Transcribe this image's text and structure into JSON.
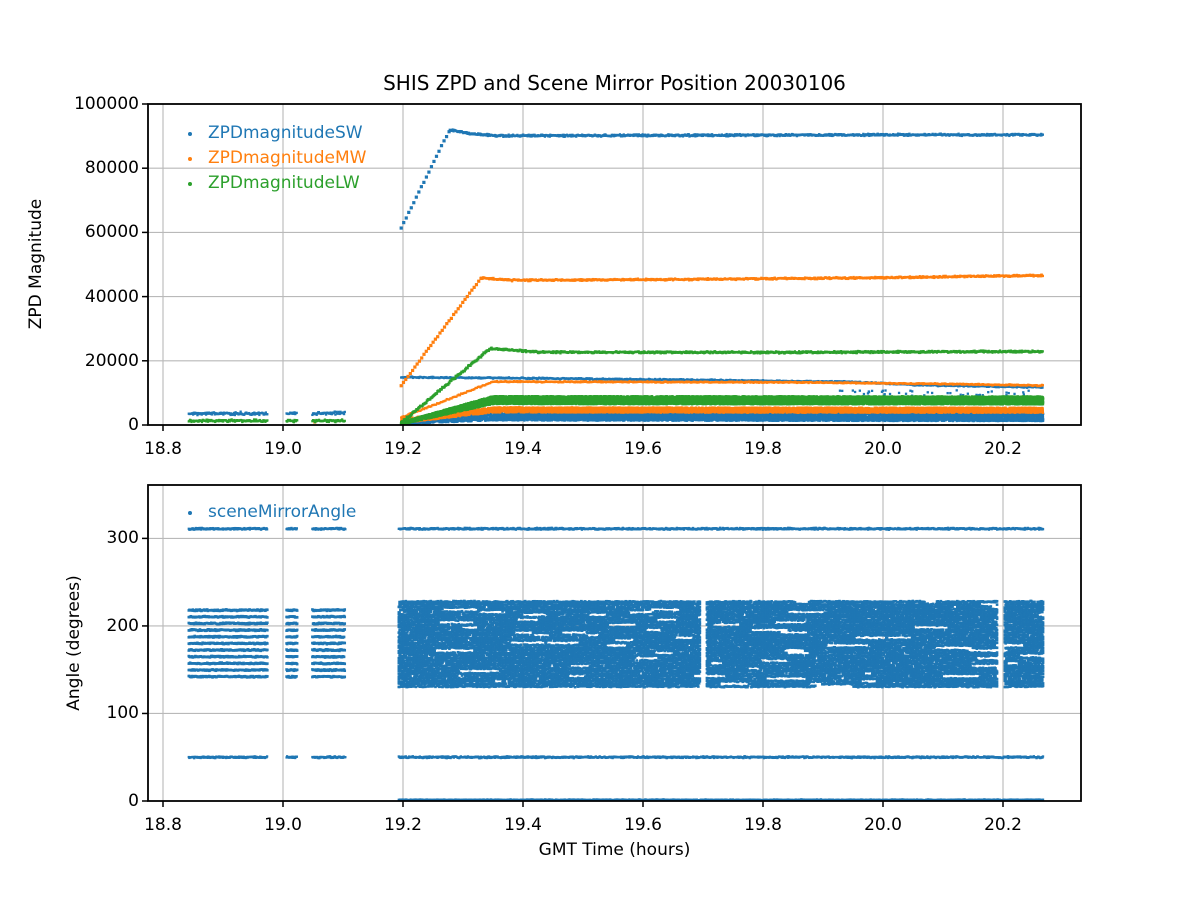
{
  "figure": {
    "background": "#ffffff",
    "grid_color": "#b9b9b9",
    "spine_color": "#000000"
  },
  "chart_data": [
    {
      "id": "zpd",
      "type": "scatter",
      "title": "SHIS ZPD and Scene Mirror Position 20030106",
      "xlabel": "",
      "ylabel": "ZPD Magnitude",
      "xlim": [
        18.775,
        20.33
      ],
      "ylim": [
        0,
        100000
      ],
      "xticks": [
        18.8,
        19.0,
        19.2,
        19.4,
        19.6,
        19.8,
        20.0,
        20.2
      ],
      "xtick_labels": [
        "18.8",
        "19.0",
        "19.2",
        "19.4",
        "19.6",
        "19.8",
        "20.0",
        "20.2"
      ],
      "yticks": [
        0,
        20000,
        40000,
        60000,
        80000,
        100000
      ],
      "ytick_labels": [
        "0",
        "20000",
        "40000",
        "60000",
        "80000",
        "100000"
      ],
      "grid": true,
      "legend_position": "upper left",
      "series": [
        {
          "name": "ZPDmagnitudeSW",
          "color": "#1f77b4",
          "segments": [
            {
              "kind": "hline",
              "windows": [
                [
                  18.843,
                  18.974
                ],
                [
                  19.006,
                  19.024
                ],
                [
                  19.049,
                  19.104
                ]
              ],
              "y": 3600,
              "jitter": 600,
              "dx": 0.0012
            },
            {
              "kind": "trend",
              "pts": [
                [
                  19.197,
                  61500
                ],
                [
                  19.278,
                  92000
                ]
              ],
              "dx": 0.0042,
              "jitter": 250,
              "size": 3.2
            },
            {
              "kind": "trend",
              "pts": [
                [
                  19.278,
                  92000
                ],
                [
                  19.31,
                  90800
                ],
                [
                  19.36,
                  90100
                ],
                [
                  19.6,
                  90200
                ],
                [
                  20.0,
                  90400
                ],
                [
                  20.267,
                  90400
                ]
              ],
              "dx": 0.0009,
              "jitter": 380
            },
            {
              "kind": "trend",
              "pts": [
                [
                  19.197,
                  14900
                ],
                [
                  19.45,
                  14500
                ],
                [
                  19.7,
                  14000
                ],
                [
                  19.95,
                  13400
                ],
                [
                  20.05,
                  12500
                ],
                [
                  20.267,
                  11700
                ]
              ],
              "dx": 0.0013,
              "jitter": 260
            },
            {
              "kind": "band",
              "x0": 19.197,
              "x1": 19.35,
              "ylo0": 300,
              "yhi0": 1400,
              "ylo1": 1400,
              "yhi1": 3900,
              "n": 900
            },
            {
              "kind": "band",
              "x0": 19.35,
              "x1": 20.267,
              "ylo0": 1400,
              "yhi0": 3900,
              "ylo1": 1200,
              "yhi1": 3700,
              "n": 7000
            },
            {
              "kind": "band",
              "x0": 19.9,
              "x1": 20.26,
              "ylo0": 9200,
              "yhi0": 10800,
              "ylo1": 9000,
              "yhi1": 10800,
              "n": 45
            }
          ]
        },
        {
          "name": "ZPDmagnitudeMW",
          "color": "#ff7f0e",
          "segments": [
            {
              "kind": "trend",
              "pts": [
                [
                  19.197,
                  12300
                ],
                [
                  19.33,
                  45800
                ]
              ],
              "dx": 0.0038,
              "jitter": 220,
              "size": 3.2
            },
            {
              "kind": "trend",
              "pts": [
                [
                  19.33,
                  45800
                ],
                [
                  19.38,
                  45100
                ],
                [
                  19.7,
                  45400
                ],
                [
                  20.0,
                  45900
                ],
                [
                  20.267,
                  46600
                ]
              ],
              "dx": 0.0009,
              "jitter": 330
            },
            {
              "kind": "trend",
              "pts": [
                [
                  19.197,
                  2300
                ],
                [
                  19.35,
                  13500
                ]
              ],
              "dx": 0.002,
              "jitter": 300
            },
            {
              "kind": "trend",
              "pts": [
                [
                  19.35,
                  13500
                ],
                [
                  19.85,
                  13300
                ],
                [
                  20.1,
                  12800
                ],
                [
                  20.267,
                  12300
                ]
              ],
              "dx": 0.0013,
              "jitter": 230
            },
            {
              "kind": "band",
              "x0": 19.197,
              "x1": 19.35,
              "ylo0": 600,
              "yhi0": 1900,
              "ylo1": 3900,
              "yhi1": 5500,
              "n": 800
            },
            {
              "kind": "band",
              "x0": 19.35,
              "x1": 20.267,
              "ylo0": 3900,
              "yhi0": 5500,
              "ylo1": 3800,
              "yhi1": 5400,
              "n": 5500
            },
            {
              "kind": "points",
              "pts": [
                [
                  19.053,
                  900
                ]
              ],
              "size": 3
            }
          ]
        },
        {
          "name": "ZPDmagnitudeLW",
          "color": "#2ca02c",
          "segments": [
            {
              "kind": "hline",
              "windows": [
                [
                  18.843,
                  18.974
                ],
                [
                  19.006,
                  19.024
                ],
                [
                  19.049,
                  19.104
                ]
              ],
              "y": 1300,
              "jitter": 450,
              "dx": 0.0011
            },
            {
              "kind": "trend",
              "pts": [
                [
                  19.197,
                  700
                ],
                [
                  19.345,
                  23800
                ]
              ],
              "dx": 0.0016,
              "jitter": 420,
              "size": 2.8
            },
            {
              "kind": "trend",
              "pts": [
                [
                  19.345,
                  23800
                ],
                [
                  19.43,
                  22700
                ],
                [
                  19.8,
                  22600
                ],
                [
                  20.267,
                  22900
                ]
              ],
              "dx": 0.0009,
              "jitter": 380
            },
            {
              "kind": "band",
              "x0": 19.197,
              "x1": 19.35,
              "ylo0": 200,
              "yhi0": 900,
              "ylo1": 6500,
              "yhi1": 9000,
              "n": 1400
            },
            {
              "kind": "band",
              "x0": 19.35,
              "x1": 20.267,
              "ylo0": 6500,
              "yhi0": 9000,
              "ylo1": 6400,
              "yhi1": 8900,
              "n": 11000
            }
          ]
        }
      ]
    },
    {
      "id": "angle",
      "type": "scatter",
      "title": "",
      "xlabel": "GMT Time (hours)",
      "ylabel": "Angle (degrees)",
      "xlim": [
        18.775,
        20.33
      ],
      "ylim": [
        0,
        361
      ],
      "xticks": [
        18.8,
        19.0,
        19.2,
        19.4,
        19.6,
        19.8,
        20.0,
        20.2
      ],
      "xtick_labels": [
        "18.8",
        "19.0",
        "19.2",
        "19.4",
        "19.6",
        "19.8",
        "20.0",
        "20.2"
      ],
      "yticks": [
        0,
        100,
        200,
        300
      ],
      "ytick_labels": [
        "0",
        "100",
        "200",
        "300"
      ],
      "grid": true,
      "legend_position": "upper left",
      "series": [
        {
          "name": "sceneMirrorAngle",
          "color": "#1f77b4",
          "segments": [
            {
              "kind": "hline",
              "windows": [
                [
                  18.843,
                  18.974
                ],
                [
                  19.006,
                  19.024
                ],
                [
                  19.049,
                  19.104
                ],
                [
                  19.193,
                  20.267
                ]
              ],
              "y": 311,
              "jitter": 1.2,
              "dx": 0.0009
            },
            {
              "kind": "stripes",
              "windows": [
                [
                  18.843,
                  18.974
                ],
                [
                  19.006,
                  19.024
                ],
                [
                  19.049,
                  19.104
                ]
              ],
              "ylo": 142,
              "yhi": 218,
              "count": 11,
              "jitter": 1.0,
              "dx": 0.0011,
              "skip": 0.05,
              "size": 2.6
            },
            {
              "kind": "stripes",
              "windows": [
                [
                  19.193,
                  20.267
                ]
              ],
              "ylo": 131,
              "yhi": 227.5,
              "count": 34,
              "jitter": 1.1,
              "dx": 0.0013,
              "skip": 0.18,
              "streaks": 3,
              "xgaps": [
                [
                  19.695,
                  19.706
                ],
                [
                  20.191,
                  20.202
                ]
              ],
              "size": 2.6
            },
            {
              "kind": "hline",
              "windows": [
                [
                  18.843,
                  18.974
                ],
                [
                  19.006,
                  19.024
                ],
                [
                  19.049,
                  19.104
                ],
                [
                  19.193,
                  20.267
                ]
              ],
              "y": 50,
              "jitter": 1.2,
              "dx": 0.0009
            },
            {
              "kind": "hline",
              "windows": [
                [
                  19.193,
                  20.267
                ]
              ],
              "y": 1.2,
              "jitter": 0.7,
              "dx": 0.0009
            }
          ]
        }
      ]
    }
  ]
}
